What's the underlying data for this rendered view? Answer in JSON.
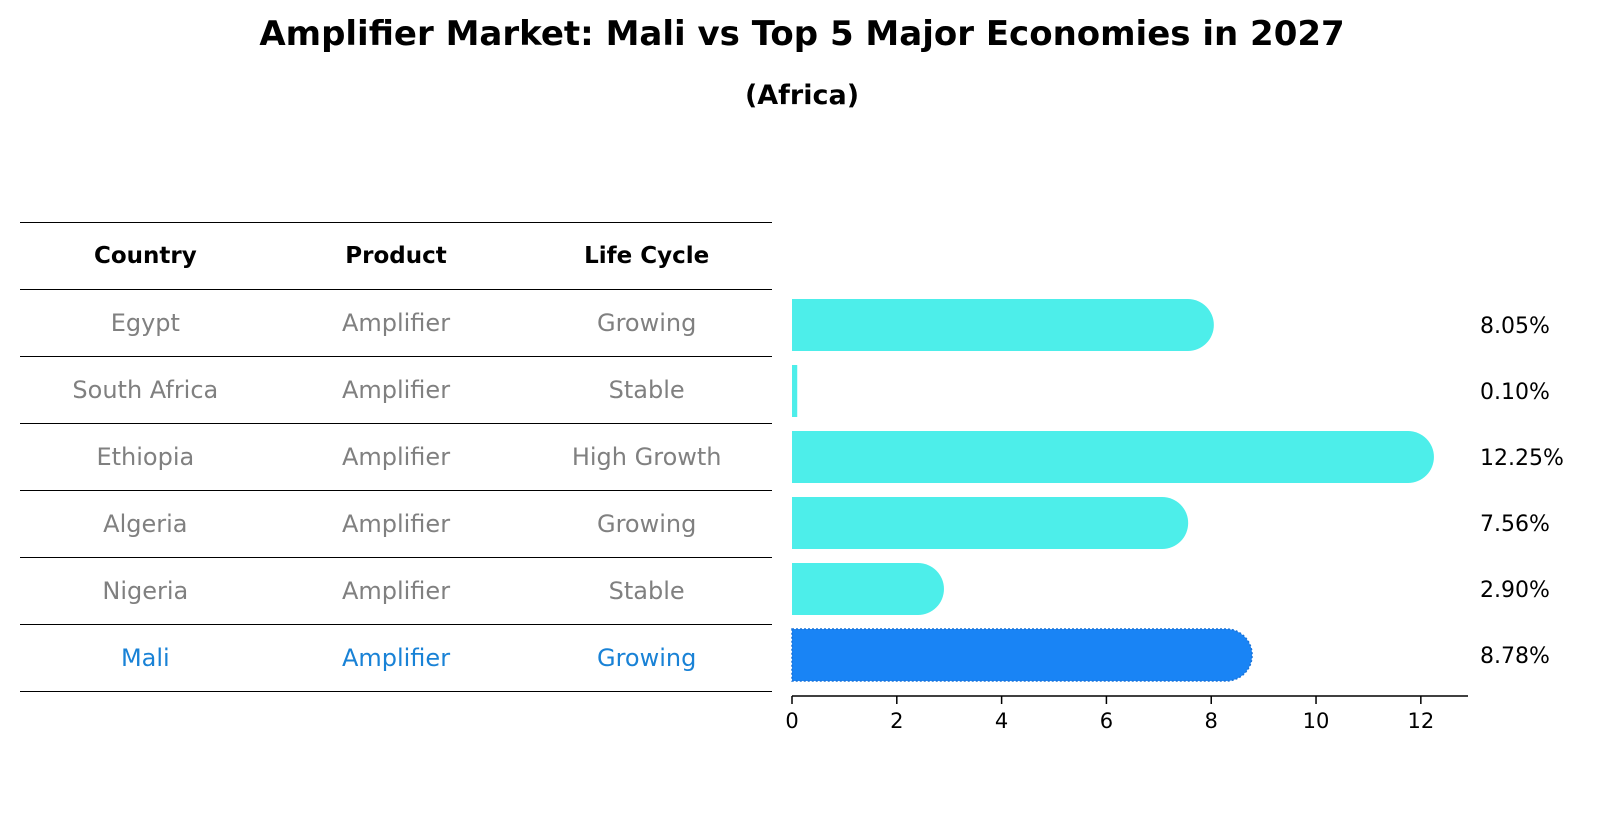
{
  "title": "Amplifier Market: Mali vs Top 5 Major Economies in 2027",
  "subtitle": "(Africa)",
  "table": {
    "headers": [
      "Country",
      "Product",
      "Life Cycle"
    ],
    "rows": [
      [
        "Egypt",
        "Amplifier",
        "Growing"
      ],
      [
        "South Africa",
        "Amplifier",
        "Stable"
      ],
      [
        "Ethiopia",
        "Amplifier",
        "High Growth"
      ],
      [
        "Algeria",
        "Amplifier",
        "Growing"
      ],
      [
        "Nigeria",
        "Amplifier",
        "Stable"
      ],
      [
        "Mali",
        "Amplifier",
        "Growing"
      ]
    ],
    "highlight_row": 5
  },
  "chart_data": {
    "type": "bar",
    "orientation": "horizontal",
    "categories": [
      "Egypt",
      "South Africa",
      "Ethiopia",
      "Algeria",
      "Nigeria",
      "Mali"
    ],
    "values": [
      8.05,
      0.1,
      12.25,
      7.56,
      2.9,
      8.78
    ],
    "value_labels": [
      "8.05%",
      "0.10%",
      "12.25%",
      "7.56%",
      "2.90%",
      "8.78%"
    ],
    "xlim": [
      0,
      12.9
    ],
    "xticks": [
      0,
      2,
      4,
      6,
      8,
      10,
      12
    ],
    "grid": false,
    "colors": {
      "default": "#4deeea",
      "highlight": "#1984f5"
    },
    "highlight_index": 5
  }
}
